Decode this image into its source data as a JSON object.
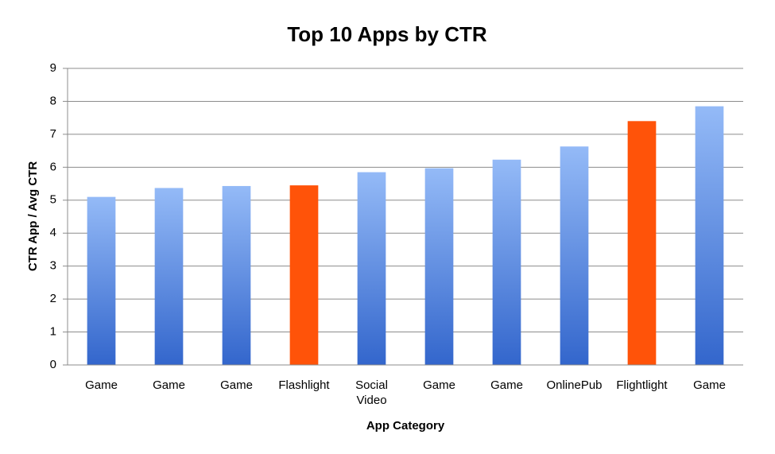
{
  "chart_data": {
    "type": "bar",
    "title": "Top 10 Apps by CTR",
    "x_label": "App Category",
    "y_label": "CTR App / Avg CTR",
    "categories": [
      "Game",
      "Game",
      "Game",
      "Flashlight",
      "Social Video",
      "Game",
      "Game",
      "OnlinePub",
      "Flightlight",
      "Game"
    ],
    "values": [
      5.1,
      5.37,
      5.43,
      5.45,
      5.85,
      5.97,
      6.23,
      6.63,
      7.4,
      7.85
    ],
    "colors": [
      "#3366cc",
      "#3366cc",
      "#3366cc",
      "#ff5309",
      "#3366cc",
      "#3366cc",
      "#3366cc",
      "#3366cc",
      "#ff5309",
      "#3366cc"
    ],
    "gradient": {
      "color": "#3366cc",
      "top": "#94baf7"
    },
    "ylim": [
      0,
      9
    ],
    "yticks": [
      0,
      1,
      2,
      3,
      4,
      5,
      6,
      7,
      8,
      9
    ],
    "grid": true
  }
}
